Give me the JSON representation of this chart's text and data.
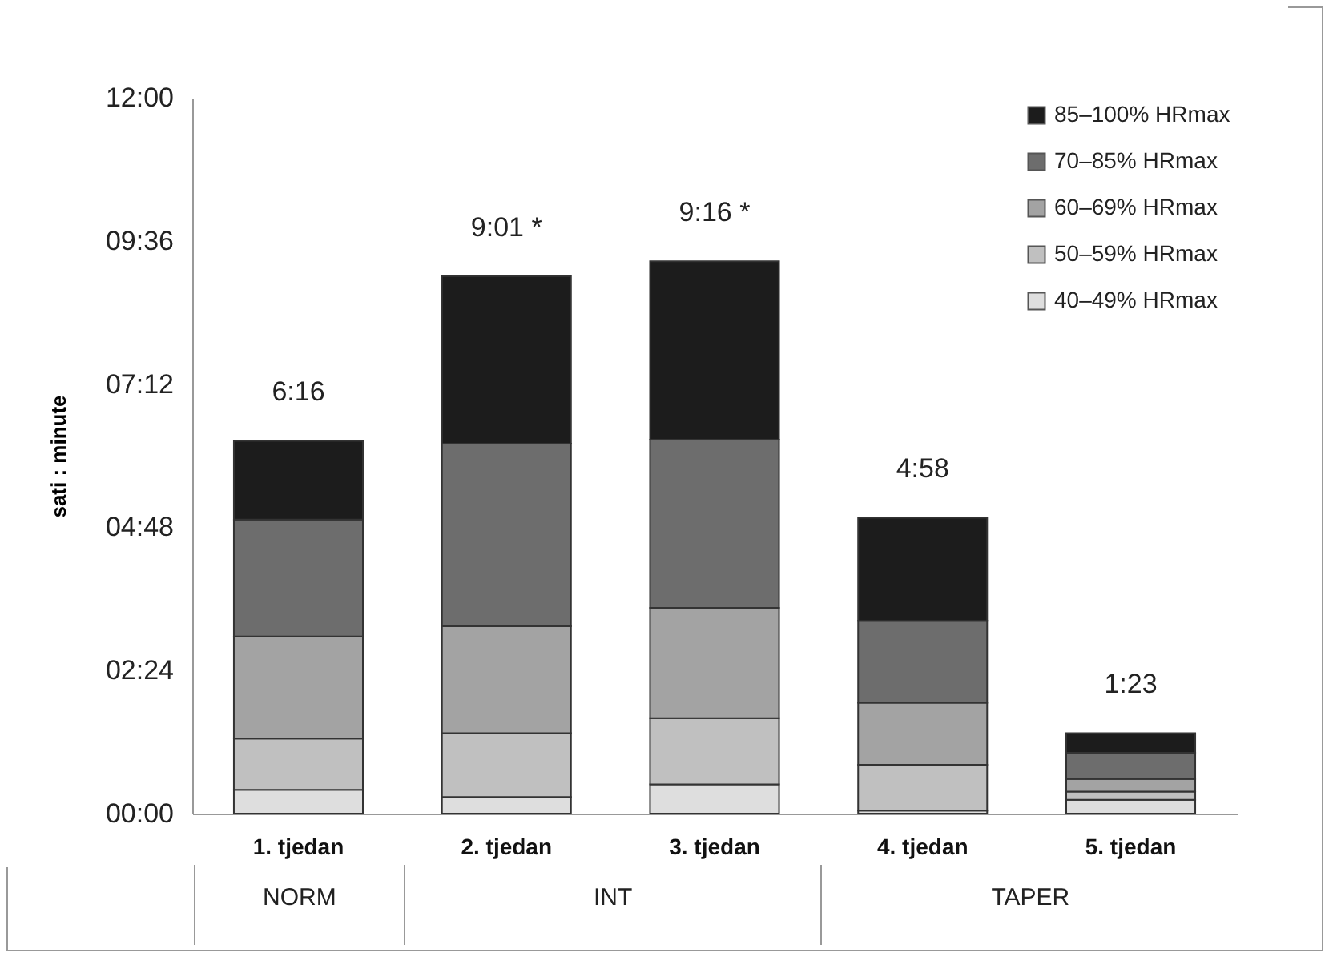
{
  "chart_data": {
    "type": "bar",
    "stacked": true,
    "ylabel": "sati : minute",
    "categories": [
      "1. tjedan",
      "2. tjedan",
      "3. tjedan",
      "4. tjedan",
      "5. tjedan"
    ],
    "series": [
      {
        "name": "40–49% HRmax",
        "color": "#dedede",
        "values": [
          0.4,
          0.28,
          0.49,
          0.05,
          0.23
        ]
      },
      {
        "name": "50–59% HRmax",
        "color": "#c0c0c0",
        "values": [
          0.86,
          1.07,
          1.11,
          0.77,
          0.14
        ]
      },
      {
        "name": "60–69% HRmax",
        "color": "#a3a3a3",
        "values": [
          1.71,
          1.79,
          1.85,
          1.04,
          0.21
        ]
      },
      {
        "name": "70–85% HRmax",
        "color": "#6d6d6d",
        "values": [
          1.96,
          3.06,
          2.82,
          1.37,
          0.44
        ]
      },
      {
        "name": "85–100% HRmax",
        "color": "#1c1c1c",
        "values": [
          1.32,
          2.81,
          2.99,
          1.73,
          0.33
        ]
      }
    ],
    "totals": [
      "6:16",
      "9:01 *",
      "9:16 *",
      "4:58",
      "1:23"
    ],
    "ylim": [
      0,
      12
    ],
    "yticks": [
      {
        "value": 0,
        "label": "00:00"
      },
      {
        "value": 2.4,
        "label": "02:24"
      },
      {
        "value": 4.8,
        "label": "04:48"
      },
      {
        "value": 7.2,
        "label": "07:12"
      },
      {
        "value": 9.6,
        "label": "09:36"
      },
      {
        "value": 12,
        "label": "12:00"
      }
    ],
    "grid": false,
    "legend": "top right",
    "annotations": [
      "NORM",
      "INT",
      "TAPER"
    ]
  }
}
